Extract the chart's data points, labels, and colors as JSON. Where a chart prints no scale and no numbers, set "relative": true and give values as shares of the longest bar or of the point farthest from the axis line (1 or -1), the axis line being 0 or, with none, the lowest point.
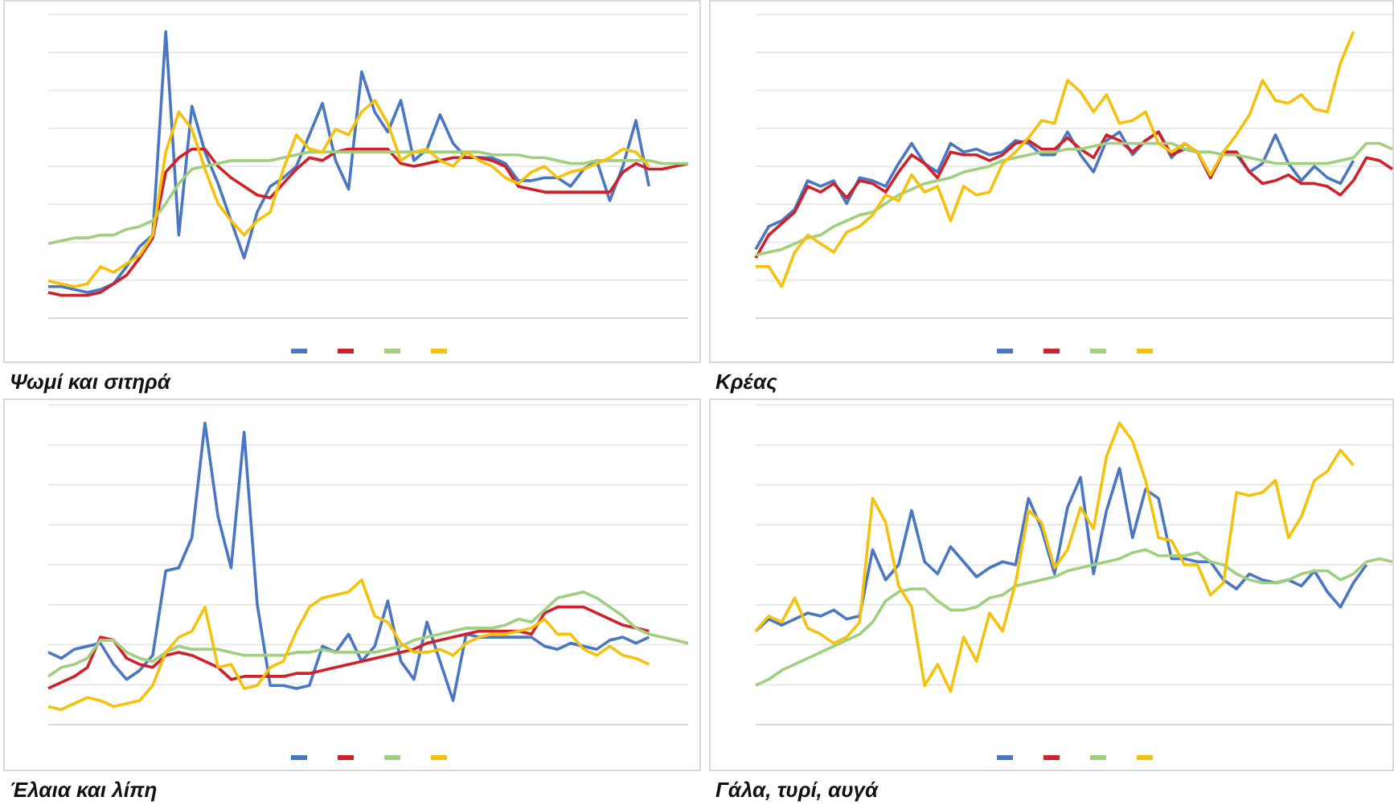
{
  "chart_data": [
    {
      "type": "line",
      "title": "Ψωμί και σιτηρά",
      "relative": true,
      "grid": "y",
      "categories": [
        null,
        null,
        null,
        null,
        null,
        null,
        null,
        null,
        null,
        null,
        null,
        null,
        null,
        null,
        null,
        null,
        null,
        null,
        null,
        null,
        null,
        null,
        null,
        null,
        null,
        null,
        null,
        null,
        null,
        null,
        null,
        null,
        null,
        null,
        null,
        null,
        null,
        null,
        null,
        null,
        null,
        null,
        null,
        null,
        null,
        null,
        null,
        null,
        null,
        null
      ],
      "series": [
        {
          "color": "#4a76c2",
          "values": [
            0.11,
            0.11,
            0.1,
            0.09,
            0.1,
            0.12,
            0.18,
            0.25,
            0.29,
            1,
            0.29,
            0.74,
            0.58,
            0.47,
            0.34,
            0.21,
            0.37,
            0.46,
            0.49,
            0.53,
            0.64,
            0.75,
            0.55,
            0.45,
            0.86,
            0.72,
            0.65,
            0.76,
            0.55,
            0.59,
            0.71,
            0.61,
            0.56,
            0.56,
            0.56,
            0.54,
            0.48,
            0.48,
            0.49,
            0.49,
            0.46,
            0.52,
            0.55,
            0.41,
            0.53,
            0.69,
            0.46,
            null,
            null,
            null
          ]
        },
        {
          "color": "#d0202a",
          "values": [
            0.09,
            0.08,
            0.08,
            0.08,
            0.09,
            0.12,
            0.15,
            0.21,
            0.28,
            0.51,
            0.56,
            0.59,
            0.59,
            0.53,
            0.49,
            0.46,
            0.43,
            0.42,
            0.47,
            0.52,
            0.56,
            0.55,
            0.58,
            0.59,
            0.59,
            0.59,
            0.59,
            0.54,
            0.53,
            0.54,
            0.55,
            0.56,
            0.56,
            0.56,
            0.55,
            0.53,
            0.46,
            0.45,
            0.44,
            0.44,
            0.44,
            0.44,
            0.44,
            0.44,
            0.51,
            0.54,
            0.52,
            0.52,
            0.53,
            0.54
          ]
        },
        {
          "color": "#9fcf7f",
          "values": [
            0.26,
            0.27,
            0.28,
            0.28,
            0.29,
            0.29,
            0.31,
            0.32,
            0.34,
            0.4,
            0.47,
            0.52,
            0.53,
            0.54,
            0.55,
            0.55,
            0.55,
            0.55,
            0.56,
            0.57,
            0.58,
            0.58,
            0.58,
            0.58,
            0.58,
            0.58,
            0.58,
            0.58,
            0.58,
            0.58,
            0.58,
            0.58,
            0.58,
            0.58,
            0.57,
            0.57,
            0.57,
            0.56,
            0.56,
            0.55,
            0.54,
            0.54,
            0.55,
            0.55,
            0.55,
            0.55,
            0.55,
            0.54,
            0.54,
            0.54
          ]
        },
        {
          "color": "#f4c20d",
          "values": [
            0.13,
            0.12,
            0.11,
            0.12,
            0.18,
            0.16,
            0.19,
            0.22,
            0.29,
            0.58,
            0.72,
            0.66,
            0.52,
            0.4,
            0.34,
            0.29,
            0.34,
            0.37,
            0.52,
            0.64,
            0.59,
            0.58,
            0.66,
            0.64,
            0.72,
            0.76,
            0.68,
            0.55,
            0.58,
            0.59,
            0.55,
            0.53,
            0.58,
            0.55,
            0.53,
            0.49,
            0.47,
            0.51,
            0.53,
            0.49,
            0.51,
            0.52,
            0.54,
            0.56,
            0.59,
            0.58,
            0.53,
            null,
            null,
            null
          ]
        }
      ]
    },
    {
      "type": "line",
      "title": "Κρέας",
      "relative": true,
      "grid": "y",
      "categories": [
        null,
        null,
        null,
        null,
        null,
        null,
        null,
        null,
        null,
        null,
        null,
        null,
        null,
        null,
        null,
        null,
        null,
        null,
        null,
        null,
        null,
        null,
        null,
        null,
        null,
        null,
        null,
        null,
        null,
        null,
        null,
        null,
        null,
        null,
        null,
        null,
        null,
        null,
        null,
        null,
        null,
        null,
        null,
        null,
        null,
        null,
        null,
        null,
        null,
        null
      ],
      "series": [
        {
          "color": "#4a76c2",
          "values": [
            0.24,
            0.32,
            0.34,
            0.38,
            0.48,
            0.46,
            0.48,
            0.4,
            0.49,
            0.48,
            0.46,
            0.54,
            0.61,
            0.54,
            0.51,
            0.61,
            0.58,
            0.59,
            0.57,
            0.58,
            0.62,
            0.61,
            0.57,
            0.57,
            0.65,
            0.57,
            0.51,
            0.62,
            0.65,
            0.57,
            0.62,
            0.65,
            0.56,
            0.61,
            0.58,
            0.49,
            0.58,
            0.57,
            0.51,
            0.54,
            0.64,
            0.54,
            0.48,
            0.53,
            0.49,
            0.47,
            0.55,
            null,
            null,
            null
          ]
        },
        {
          "color": "#d0202a",
          "values": [
            0.21,
            0.29,
            0.33,
            0.37,
            0.46,
            0.44,
            0.47,
            0.42,
            0.48,
            0.47,
            0.44,
            0.51,
            0.57,
            0.54,
            0.49,
            0.58,
            0.57,
            0.57,
            0.55,
            0.57,
            0.61,
            0.62,
            0.59,
            0.59,
            0.63,
            0.59,
            0.56,
            0.64,
            0.62,
            0.58,
            0.62,
            0.65,
            0.57,
            0.59,
            0.58,
            0.49,
            0.58,
            0.58,
            0.51,
            0.47,
            0.48,
            0.5,
            0.47,
            0.47,
            0.46,
            0.43,
            0.48,
            0.56,
            0.55,
            0.52
          ]
        },
        {
          "color": "#9fcf7f",
          "values": [
            0.22,
            0.23,
            0.24,
            0.26,
            0.28,
            0.29,
            0.32,
            0.34,
            0.36,
            0.37,
            0.4,
            0.43,
            0.45,
            0.47,
            0.48,
            0.49,
            0.51,
            0.52,
            0.53,
            0.55,
            0.56,
            0.57,
            0.58,
            0.58,
            0.59,
            0.59,
            0.6,
            0.61,
            0.61,
            0.61,
            0.61,
            0.61,
            0.61,
            0.59,
            0.58,
            0.58,
            0.57,
            0.57,
            0.56,
            0.55,
            0.54,
            0.54,
            0.54,
            0.54,
            0.54,
            0.55,
            0.56,
            0.61,
            0.61,
            0.59
          ]
        },
        {
          "color": "#f4c20d",
          "values": [
            0.18,
            0.18,
            0.11,
            0.23,
            0.29,
            0.26,
            0.23,
            0.3,
            0.32,
            0.36,
            0.43,
            0.41,
            0.5,
            0.44,
            0.46,
            0.34,
            0.46,
            0.43,
            0.44,
            0.54,
            0.58,
            0.63,
            0.69,
            0.68,
            0.83,
            0.79,
            0.72,
            0.78,
            0.68,
            0.69,
            0.72,
            0.61,
            0.58,
            0.61,
            0.58,
            0.5,
            0.58,
            0.64,
            0.71,
            0.83,
            0.76,
            0.75,
            0.78,
            0.73,
            0.72,
            0.89,
            1,
            null,
            null,
            null
          ]
        }
      ]
    },
    {
      "type": "line",
      "title": "Έλαια και λίπη",
      "relative": true,
      "grid": "y",
      "categories": [
        null,
        null,
        null,
        null,
        null,
        null,
        null,
        null,
        null,
        null,
        null,
        null,
        null,
        null,
        null,
        null,
        null,
        null,
        null,
        null,
        null,
        null,
        null,
        null,
        null,
        null,
        null,
        null,
        null,
        null,
        null,
        null,
        null,
        null,
        null,
        null,
        null,
        null,
        null,
        null,
        null,
        null,
        null,
        null,
        null,
        null,
        null,
        null,
        null,
        null
      ],
      "series": [
        {
          "color": "#4a76c2",
          "values": [
            0.24,
            0.22,
            0.25,
            0.26,
            0.27,
            0.2,
            0.15,
            0.18,
            0.23,
            0.51,
            0.52,
            0.62,
            1,
            0.69,
            0.52,
            0.97,
            0.4,
            0.13,
            0.13,
            0.12,
            0.13,
            0.26,
            0.24,
            0.3,
            0.21,
            0.26,
            0.41,
            0.21,
            0.15,
            0.34,
            0.21,
            0.08,
            0.3,
            0.29,
            0.29,
            0.29,
            0.29,
            0.29,
            0.26,
            0.25,
            0.27,
            0.26,
            0.25,
            0.28,
            0.29,
            0.27,
            0.29,
            null,
            null,
            null
          ]
        },
        {
          "color": "#d0202a",
          "values": [
            0.12,
            0.14,
            0.16,
            0.19,
            0.29,
            0.28,
            0.22,
            0.2,
            0.19,
            0.23,
            0.24,
            0.23,
            0.21,
            0.19,
            0.15,
            0.16,
            0.16,
            0.16,
            0.16,
            0.17,
            0.17,
            0.18,
            0.19,
            0.2,
            0.21,
            0.22,
            0.23,
            0.24,
            0.25,
            0.27,
            0.28,
            0.29,
            0.3,
            0.31,
            0.31,
            0.31,
            0.31,
            0.3,
            0.37,
            0.39,
            0.39,
            0.39,
            0.37,
            0.35,
            0.33,
            0.32,
            0.31,
            null,
            null,
            null
          ]
        },
        {
          "color": "#9fcf7f",
          "values": [
            0.16,
            0.19,
            0.2,
            0.22,
            0.28,
            0.28,
            0.24,
            0.22,
            0.21,
            0.24,
            0.26,
            0.25,
            0.25,
            0.25,
            0.24,
            0.23,
            0.23,
            0.23,
            0.23,
            0.24,
            0.24,
            0.25,
            0.24,
            0.24,
            0.24,
            0.24,
            0.25,
            0.26,
            0.28,
            0.29,
            0.3,
            0.31,
            0.32,
            0.32,
            0.32,
            0.33,
            0.35,
            0.34,
            0.38,
            0.42,
            0.43,
            0.44,
            0.42,
            0.39,
            0.36,
            0.32,
            0.3,
            0.29,
            0.28,
            0.27
          ]
        },
        {
          "color": "#f4c20d",
          "values": [
            0.06,
            0.05,
            0.07,
            0.09,
            0.08,
            0.06,
            0.07,
            0.08,
            0.13,
            0.24,
            0.29,
            0.31,
            0.39,
            0.19,
            0.2,
            0.12,
            0.13,
            0.19,
            0.21,
            0.31,
            0.39,
            0.42,
            0.43,
            0.44,
            0.48,
            0.36,
            0.34,
            0.27,
            0.24,
            0.24,
            0.25,
            0.23,
            0.27,
            0.29,
            0.3,
            0.3,
            0.31,
            0.32,
            0.35,
            0.3,
            0.3,
            0.25,
            0.23,
            0.26,
            0.23,
            0.22,
            0.2,
            null,
            null,
            null
          ]
        }
      ]
    },
    {
      "type": "line",
      "title": "Γάλα, τυρί, αυγά",
      "relative": true,
      "grid": "y",
      "categories": [
        null,
        null,
        null,
        null,
        null,
        null,
        null,
        null,
        null,
        null,
        null,
        null,
        null,
        null,
        null,
        null,
        null,
        null,
        null,
        null,
        null,
        null,
        null,
        null,
        null,
        null,
        null,
        null,
        null,
        null,
        null,
        null,
        null,
        null,
        null,
        null,
        null,
        null,
        null,
        null,
        null,
        null,
        null,
        null,
        null,
        null,
        null,
        null,
        null,
        null
      ],
      "series": [
        {
          "color": "#4a76c2",
          "values": [
            0.31,
            0.35,
            0.33,
            0.35,
            0.37,
            0.36,
            0.38,
            0.35,
            0.36,
            0.58,
            0.48,
            0.53,
            0.71,
            0.54,
            0.5,
            0.59,
            0.54,
            0.49,
            0.52,
            0.54,
            0.53,
            0.75,
            0.65,
            0.5,
            0.72,
            0.82,
            0.5,
            0.71,
            0.85,
            0.62,
            0.78,
            0.75,
            0.55,
            0.55,
            0.54,
            0.54,
            0.48,
            0.45,
            0.5,
            0.48,
            0.47,
            0.48,
            0.46,
            0.51,
            0.44,
            0.39,
            0.47,
            0.53,
            null,
            null
          ]
        },
        {
          "color": "#d0202a",
          "values": [
            null,
            null,
            null,
            null,
            null,
            null,
            null,
            null,
            null,
            null,
            null,
            null,
            null,
            null,
            null,
            null,
            null,
            null,
            null,
            null,
            null,
            null,
            null,
            null,
            null,
            null,
            null,
            null,
            null,
            null,
            null,
            null,
            null,
            null,
            null,
            null,
            null,
            null,
            null,
            null,
            null,
            null,
            null,
            null,
            null,
            null,
            null,
            null,
            null,
            null
          ]
        },
        {
          "color": "#9fcf7f",
          "values": [
            0.13,
            0.15,
            0.18,
            0.2,
            0.22,
            0.24,
            0.26,
            0.28,
            0.3,
            0.34,
            0.41,
            0.44,
            0.45,
            0.45,
            0.41,
            0.38,
            0.38,
            0.39,
            0.42,
            0.43,
            0.46,
            0.47,
            0.48,
            0.49,
            0.51,
            0.52,
            0.53,
            0.54,
            0.55,
            0.57,
            0.58,
            0.56,
            0.56,
            0.56,
            0.57,
            0.54,
            0.53,
            0.5,
            0.48,
            0.47,
            0.47,
            0.48,
            0.5,
            0.51,
            0.51,
            0.48,
            0.5,
            0.54,
            0.55,
            0.54
          ]
        },
        {
          "color": "#f4c20d",
          "values": [
            0.31,
            0.36,
            0.34,
            0.42,
            0.32,
            0.3,
            0.27,
            0.29,
            0.34,
            0.75,
            0.67,
            0.46,
            0.39,
            0.13,
            0.2,
            0.11,
            0.29,
            0.21,
            0.37,
            0.31,
            0.47,
            0.71,
            0.67,
            0.52,
            0.58,
            0.72,
            0.65,
            0.89,
            1,
            0.94,
            0.81,
            0.62,
            0.61,
            0.53,
            0.53,
            0.43,
            0.47,
            0.77,
            0.76,
            0.77,
            0.81,
            0.62,
            0.69,
            0.81,
            0.84,
            0.91,
            0.86,
            null,
            null,
            null
          ]
        }
      ]
    }
  ]
}
